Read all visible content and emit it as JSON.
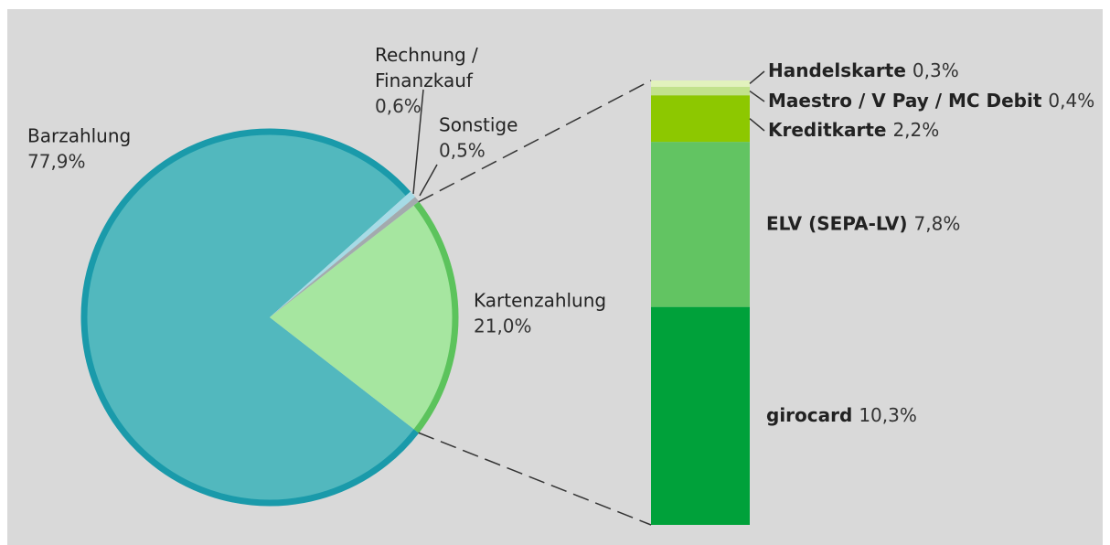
{
  "chart_data": [
    {
      "type": "pie",
      "categories": [
        "Barzahlung",
        "Rechnung / Finanzkauf",
        "Sonstige",
        "Kartenzahlung"
      ],
      "values": [
        77.9,
        0.6,
        0.5,
        21.0
      ],
      "value_labels": [
        "77,9%",
        "0,6%",
        "0,5%",
        "21,0%"
      ],
      "colors": [
        "#52b8be",
        "#a6dbe6",
        "#a3aaae",
        "#a6e6a0"
      ],
      "edge_colors": [
        "#1a9aaa",
        "#a6dbe6",
        "#a3aaae",
        "#5cc35c"
      ]
    },
    {
      "type": "bar",
      "categories": [
        "girocard",
        "ELV (SEPA-LV)",
        "Kreditkarte",
        "Maestro / V Pay / MC Debit",
        "Handelskarte"
      ],
      "values": [
        10.3,
        7.8,
        2.2,
        0.4,
        0.3
      ],
      "value_labels": [
        "10,3%",
        "7,8%",
        "2,2%",
        "0,4%",
        "0,3%"
      ],
      "colors": [
        "#00a13a",
        "#62c462",
        "#8dc800",
        "#c2e28c",
        "#e2f2bd"
      ]
    }
  ]
}
